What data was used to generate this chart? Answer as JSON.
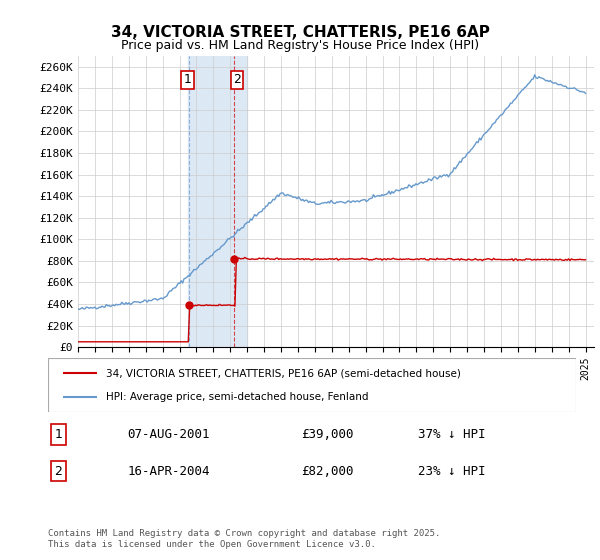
{
  "title1": "34, VICTORIA STREET, CHATTERIS, PE16 6AP",
  "title2": "Price paid vs. HM Land Registry's House Price Index (HPI)",
  "ylabel_ticks": [
    "£0",
    "£20K",
    "£40K",
    "£60K",
    "£80K",
    "£100K",
    "£120K",
    "£140K",
    "£160K",
    "£180K",
    "£200K",
    "£220K",
    "£240K",
    "£260K"
  ],
  "ytick_vals": [
    0,
    20000,
    40000,
    60000,
    80000,
    100000,
    120000,
    140000,
    160000,
    180000,
    200000,
    220000,
    240000,
    260000
  ],
  "ylim": [
    0,
    270000
  ],
  "year_start": 1995,
  "year_end": 2025,
  "legend_line1": "34, VICTORIA STREET, CHATTERIS, PE16 6AP (semi-detached house)",
  "legend_line2": "HPI: Average price, semi-detached house, Fenland",
  "purchase1_label": "1",
  "purchase1_date": "07-AUG-2001",
  "purchase1_price": "£39,000",
  "purchase1_hpi": "37% ↓ HPI",
  "purchase2_label": "2",
  "purchase2_date": "16-APR-2004",
  "purchase2_price": "£82,000",
  "purchase2_hpi": "23% ↓ HPI",
  "red_color": "#cc0000",
  "blue_color": "#6699cc",
  "highlight_color": "#dde8f5",
  "grid_color": "#cccccc",
  "footer": "Contains HM Land Registry data © Crown copyright and database right 2025.\nThis data is licensed under the Open Government Licence v3.0."
}
